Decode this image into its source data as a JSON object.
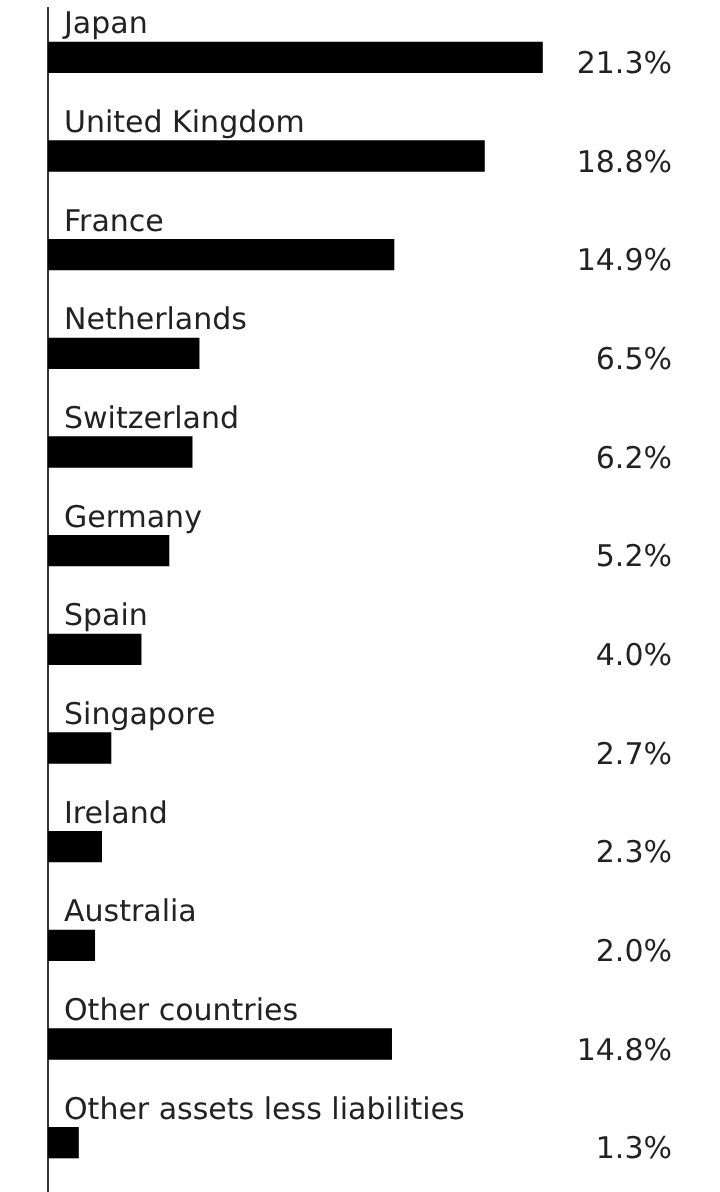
{
  "chart_data": {
    "type": "bar",
    "orientation": "horizontal",
    "categories": [
      "Japan",
      "United Kingdom",
      "France",
      "Netherlands",
      "Switzerland",
      "Germany",
      "Spain",
      "Singapore",
      "Ireland",
      "Australia",
      "Other countries",
      "Other assets less liabilities"
    ],
    "values": [
      21.3,
      18.8,
      14.9,
      6.5,
      6.2,
      5.2,
      4.0,
      2.7,
      2.3,
      2.0,
      14.8,
      1.3
    ],
    "value_labels": [
      "21.3%",
      "18.8%",
      "14.9%",
      "6.5%",
      "6.2%",
      "5.2%",
      "4.0%",
      "2.7%",
      "2.3%",
      "2.0%",
      "14.8%",
      "1.3%"
    ],
    "color": "#000000",
    "grid": false,
    "legend": false
  }
}
